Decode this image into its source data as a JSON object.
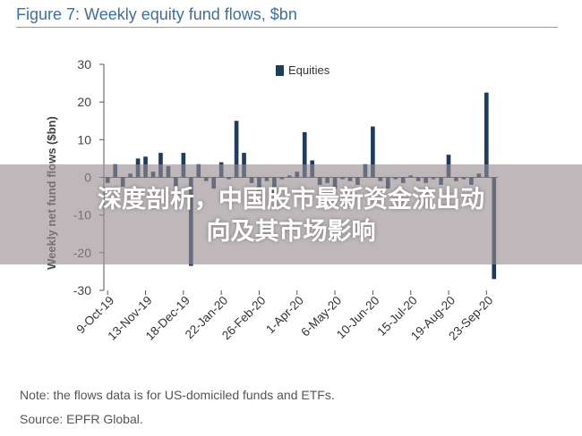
{
  "figure_title": "Figure 7: Weekly equity fund flows, $bn",
  "banner": {
    "line1": "深度剖析，中国股市最新资金流出动",
    "line2": "向及其市场影响"
  },
  "note": "Note: the flows data is for US-domiciled funds and ETFs.",
  "source": "Source: EPFR Global.",
  "chart_data": {
    "type": "bar",
    "title": "Weekly equity fund flows, $bn",
    "ylabel": "Weekly net fund flows ($bn)",
    "xlabel": "",
    "ylim": [
      -30,
      30
    ],
    "yticks": [
      30,
      20,
      10,
      0,
      -10,
      -20,
      -30
    ],
    "x_tick_labels": [
      "9-Oct-19",
      "13-Nov-19",
      "18-Dec-19",
      "22-Jan-20",
      "26-Feb-20",
      "1-Apr-20",
      "6-May-20",
      "10-Jun-20",
      "15-Jul-20",
      "19-Aug-20",
      "23-Sep-20"
    ],
    "x_tick_index": [
      0,
      5,
      10,
      15,
      20,
      25,
      30,
      35,
      40,
      45,
      50
    ],
    "series": [
      {
        "name": "Equities",
        "color": "#1f3b5e",
        "values": [
          -1.5,
          3.5,
          -2.5,
          1.0,
          5.0,
          5.5,
          1.5,
          6.5,
          3.0,
          -2.5,
          6.5,
          -23.5,
          3.5,
          -1.0,
          -3.0,
          4.0,
          -0.5,
          15.0,
          6.5,
          -1.5,
          -3.5,
          -1.0,
          -4.5,
          -0.5,
          0.5,
          1.5,
          12.0,
          4.5,
          -2.0,
          -1.5,
          -3.0,
          -0.5,
          -1.0,
          -2.0,
          3.5,
          13.5,
          -1.0,
          -3.0,
          -0.5,
          -1.5,
          0.5,
          -1.0,
          -1.5,
          -0.5,
          -2.0,
          6.0,
          -1.0,
          -0.5,
          -2.0,
          1.0,
          22.5,
          -27.0
        ]
      }
    ],
    "legend_position": "top-right",
    "grid": false
  }
}
